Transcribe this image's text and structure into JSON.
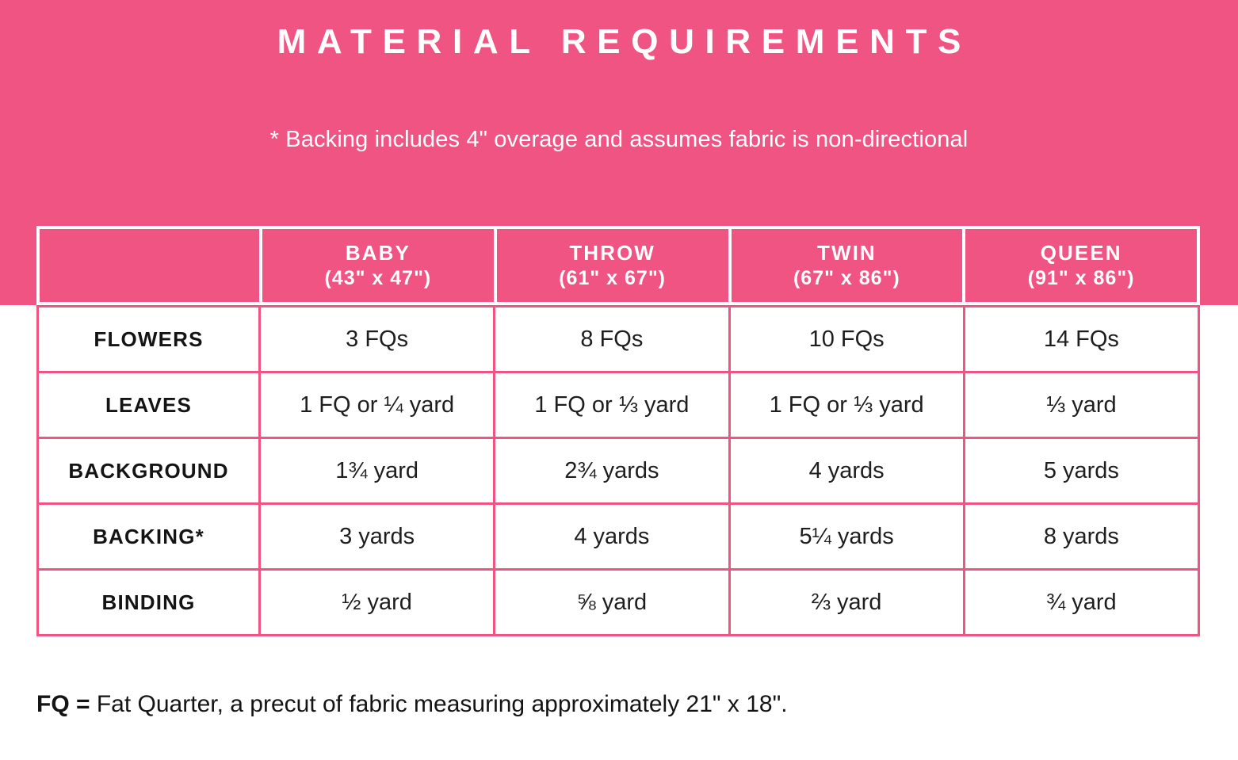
{
  "colors": {
    "pink": "#EF5482",
    "white": "#ffffff",
    "text_dark": "#141414"
  },
  "hero": {
    "title": "MATERIAL REQUIREMENTS",
    "note": "* Backing includes 4\" overage and assumes fabric is non-directional"
  },
  "table": {
    "columns": [
      {
        "name": "BABY",
        "dimensions": "(43\" x 47\")"
      },
      {
        "name": "THROW",
        "dimensions": "(61\" x 67\")"
      },
      {
        "name": "TWIN",
        "dimensions": "(67\" x 86\")"
      },
      {
        "name": "QUEEN",
        "dimensions": "(91\" x 86\")"
      }
    ],
    "rows": [
      {
        "label": "FLOWERS",
        "values": [
          "3 FQs",
          "8 FQs",
          "10 FQs",
          "14 FQs"
        ]
      },
      {
        "label": "LEAVES",
        "values": [
          "1 FQ or ¼ yard",
          "1 FQ or ⅓ yard",
          "1 FQ or ⅓ yard",
          "⅓ yard"
        ]
      },
      {
        "label": "BACKGROUND",
        "values": [
          "1¾ yard",
          "2¾ yards",
          "4 yards",
          "5 yards"
        ]
      },
      {
        "label": "BACKING*",
        "values": [
          "3 yards",
          "4 yards",
          "5¼ yards",
          "8 yards"
        ]
      },
      {
        "label": "BINDING",
        "values": [
          "½ yard",
          "⅝ yard",
          "⅔ yard",
          "¾ yard"
        ]
      }
    ]
  },
  "footnote": {
    "abbr": "FQ = ",
    "text": "Fat Quarter, a precut of fabric measuring approximately 21\" x 18\"."
  }
}
